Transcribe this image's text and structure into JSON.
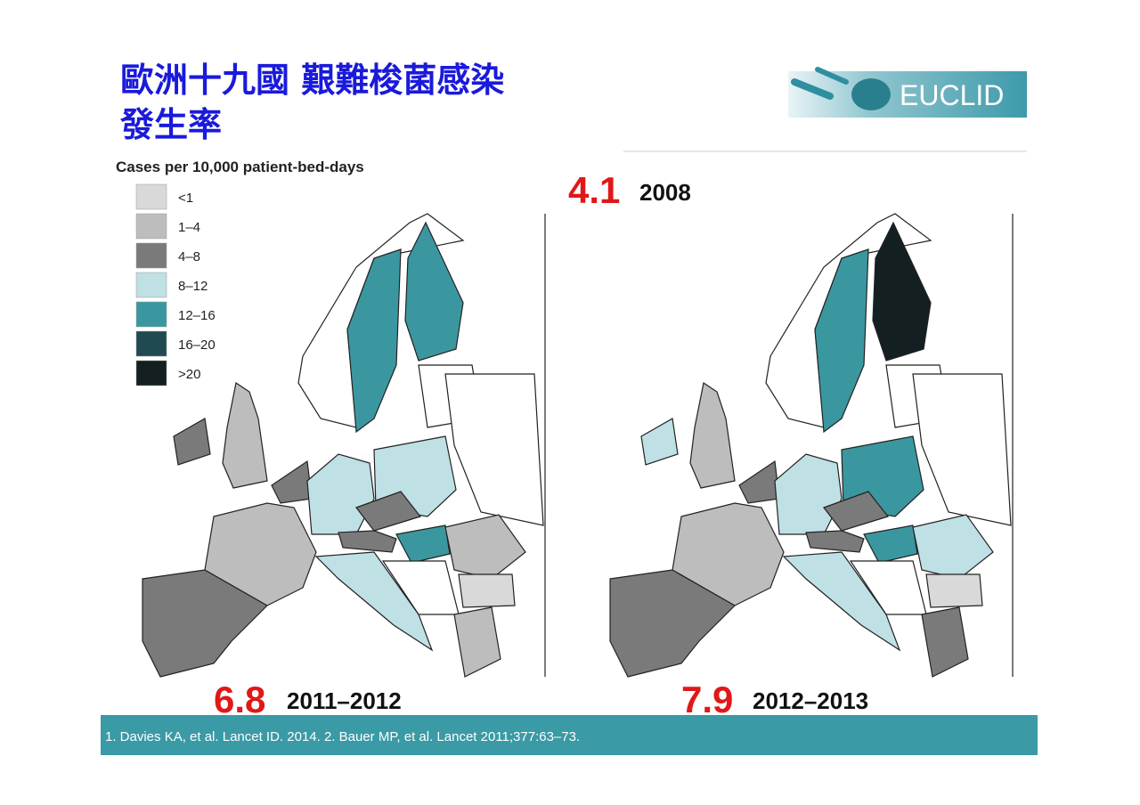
{
  "title": [
    "歐洲十九國 艱難梭菌感染",
    "發生率"
  ],
  "logo": "EUCLID",
  "legend": {
    "title": "Cases per 10,000 patient-bed-days",
    "items": [
      {
        "label": "<1",
        "color": "#d9d9d9"
      },
      {
        "label": "1–4",
        "color": "#bdbdbd"
      },
      {
        "label": "4–8",
        "color": "#7a7a7a"
      },
      {
        "label": "8–12",
        "color": "#bfe0e4"
      },
      {
        "label": "12–16",
        "color": "#3b979f"
      },
      {
        "label": "16–20",
        "color": "#1f4a52"
      },
      {
        "label": ">20",
        "color": "#141f22"
      }
    ]
  },
  "rates": [
    {
      "value": "4.1",
      "period": "2008"
    },
    {
      "value": "6.8",
      "period": "2011–2012"
    },
    {
      "value": "7.9",
      "period": "2012–2013"
    }
  ],
  "footer": "1. Davies KA, et al. Lancet ID. 2014.  2. Bauer MP, et al. Lancet 2011;377:63–73."
}
